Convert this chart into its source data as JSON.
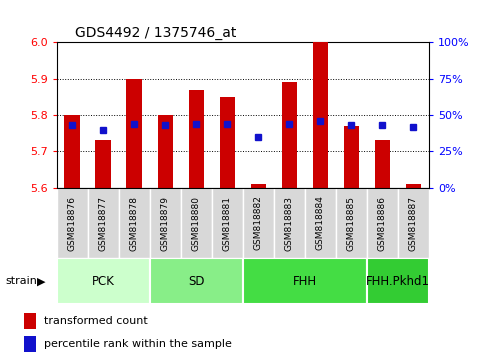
{
  "title": "GDS4492 / 1375746_at",
  "samples": [
    "GSM818876",
    "GSM818877",
    "GSM818878",
    "GSM818879",
    "GSM818880",
    "GSM818881",
    "GSM818882",
    "GSM818883",
    "GSM818884",
    "GSM818885",
    "GSM818886",
    "GSM818887"
  ],
  "red_values": [
    5.8,
    5.73,
    5.9,
    5.8,
    5.87,
    5.85,
    5.61,
    5.89,
    6.0,
    5.77,
    5.73,
    5.61
  ],
  "blue_values_pct": [
    43,
    40,
    44,
    43,
    44,
    44,
    35,
    44,
    46,
    43,
    43,
    42
  ],
  "ymin": 5.6,
  "ymax": 6.0,
  "yticks": [
    5.6,
    5.7,
    5.8,
    5.9,
    6.0
  ],
  "right_yticks": [
    0,
    25,
    50,
    75,
    100
  ],
  "bar_color": "#cc0000",
  "dot_color": "#1111cc",
  "groups": [
    {
      "label": "PCK",
      "start": 0,
      "end": 2,
      "color": "#ccffcc"
    },
    {
      "label": "SD",
      "start": 3,
      "end": 5,
      "color": "#88ee88"
    },
    {
      "label": "FHH",
      "start": 6,
      "end": 9,
      "color": "#44dd44"
    },
    {
      "label": "FHH.Pkhd1",
      "start": 10,
      "end": 11,
      "color": "#33cc33"
    }
  ],
  "strain_label": "strain",
  "legend_red": "transformed count",
  "legend_blue": "percentile rank within the sample",
  "bar_width": 0.5,
  "baseline": 5.6,
  "tick_gray": "#cccccc"
}
